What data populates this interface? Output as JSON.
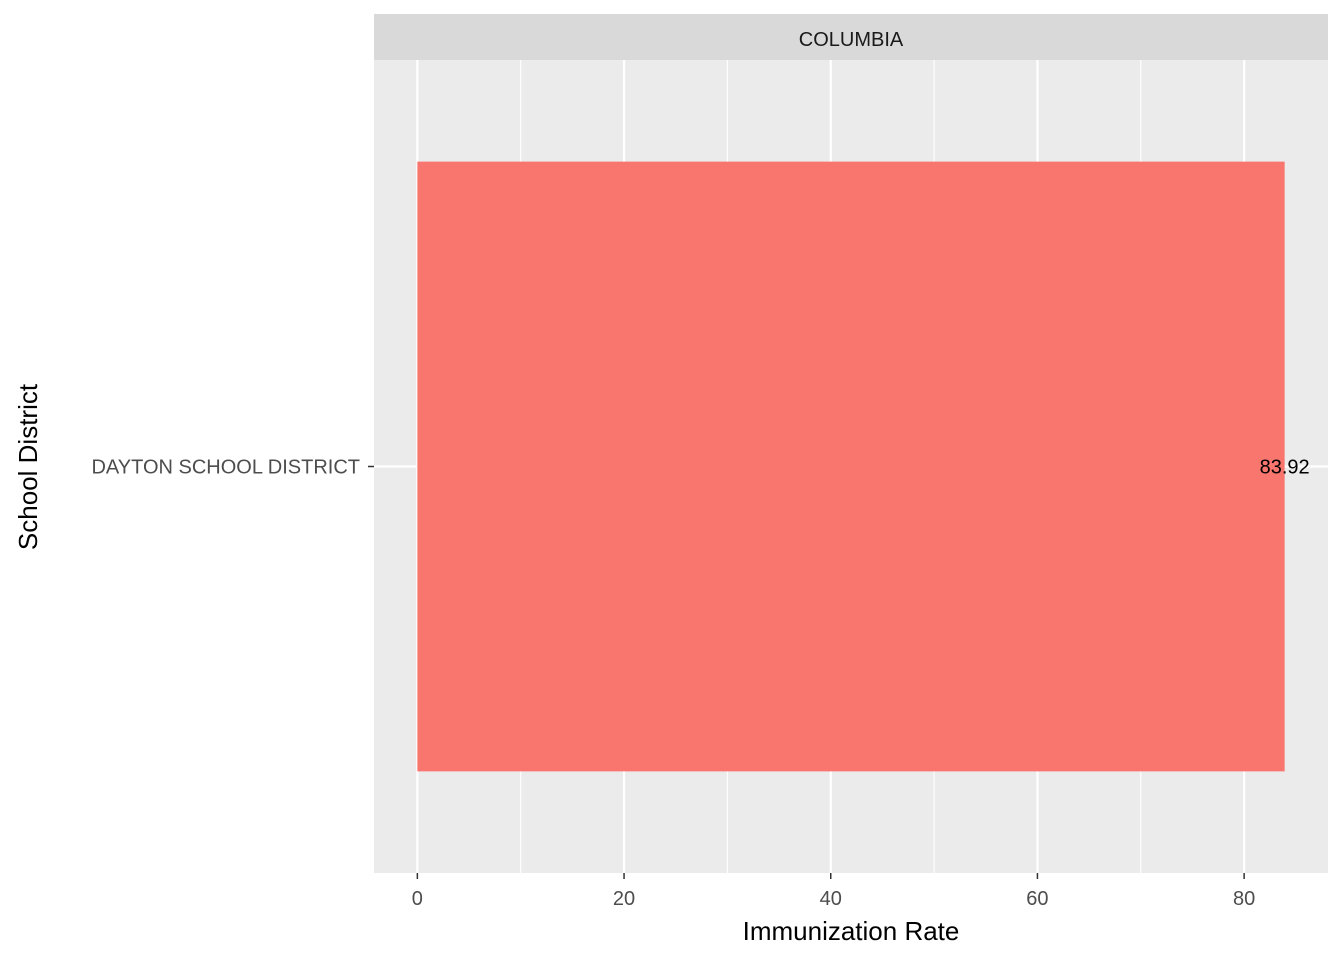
{
  "chart_data": {
    "type": "bar",
    "orientation": "horizontal",
    "facet": "COLUMBIA",
    "categories": [
      "DAYTON SCHOOL DISTRICT"
    ],
    "values": [
      83.92
    ],
    "data_labels": [
      "83.92"
    ],
    "xlabel": "Immunization Rate",
    "ylabel": "School District",
    "xlim": [
      -4.196,
      88.116
    ],
    "x_ticks": [
      0,
      20,
      40,
      60,
      80
    ],
    "x_minor_ticks": [
      10,
      30,
      50,
      70
    ],
    "grid": true,
    "legend": "none",
    "colors": {
      "bar": "#F8766D",
      "panel_background": "#EBEBEB",
      "strip_background": "#D9D9D9",
      "grid": "#FFFFFF"
    }
  }
}
